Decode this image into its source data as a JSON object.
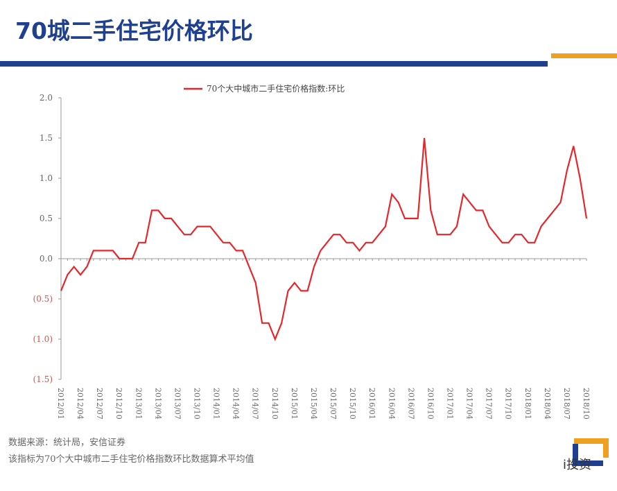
{
  "chart_data": {
    "type": "line",
    "title": "70城二手住宅价格环比",
    "categories": [
      "2012/01",
      null,
      null,
      "2012/04",
      null,
      null,
      "2012/07",
      null,
      null,
      "2012/10",
      null,
      null,
      "2013/01",
      null,
      null,
      "2013/04",
      null,
      null,
      "2013/07",
      null,
      null,
      "2013/10",
      null,
      null,
      "2014/01",
      null,
      null,
      "2014/04",
      null,
      null,
      "2014/07",
      null,
      null,
      "2014/10",
      null,
      null,
      "2015/01",
      null,
      null,
      "2015/04",
      null,
      null,
      "2015/07",
      null,
      null,
      "2015/10",
      null,
      null,
      "2016/01",
      null,
      null,
      "2016/04",
      null,
      null,
      "2016/07",
      null,
      null,
      "2016/10",
      null,
      null,
      "2017/01",
      null,
      null,
      "2017/04",
      null,
      null,
      "2017/07",
      null,
      null,
      "2017/10",
      null,
      null,
      "2018/01",
      null,
      null,
      "2018/04",
      null,
      null,
      "2018/07",
      null,
      null,
      "2018/10"
    ],
    "series": [
      {
        "name": "70个大中城市二手住宅价格指数:环比",
        "color": "#e8262a",
        "values": [
          -0.4,
          -0.2,
          -0.1,
          -0.2,
          -0.1,
          0.1,
          0.1,
          0.1,
          0.1,
          0.0,
          0.0,
          0.0,
          0.2,
          0.2,
          0.6,
          0.6,
          0.5,
          0.5,
          0.4,
          0.3,
          0.3,
          0.4,
          0.4,
          0.4,
          0.3,
          0.2,
          0.2,
          0.1,
          0.1,
          -0.1,
          -0.3,
          -0.8,
          -0.8,
          -1.0,
          -0.8,
          -0.4,
          -0.3,
          -0.4,
          -0.4,
          -0.1,
          0.1,
          0.2,
          0.3,
          0.3,
          0.2,
          0.2,
          0.1,
          0.2,
          0.2,
          0.3,
          0.4,
          0.8,
          0.7,
          0.5,
          0.5,
          0.5,
          1.5,
          0.6,
          0.3,
          0.3,
          0.3,
          0.4,
          0.8,
          0.7,
          0.6,
          0.6,
          0.4,
          0.3,
          0.2,
          0.2,
          0.3,
          0.3,
          0.2,
          0.2,
          0.4,
          0.5,
          0.6,
          0.7,
          1.1,
          1.4,
          1.0,
          0.5
        ]
      }
    ],
    "ylim": [
      -1.5,
      2.0
    ],
    "yticks": [
      {
        "value": 2.0,
        "label": "2.0"
      },
      {
        "value": 1.5,
        "label": "1.5"
      },
      {
        "value": 1.0,
        "label": "1.0"
      },
      {
        "value": 0.5,
        "label": "0.5"
      },
      {
        "value": 0.0,
        "label": "0.0"
      },
      {
        "value": -0.5,
        "label": "(0.5)"
      },
      {
        "value": -1.0,
        "label": "(1.0)"
      },
      {
        "value": -1.5,
        "label": "(1.5)"
      }
    ],
    "negative_label_color": "#d9534f",
    "legend": "top",
    "source": "数据来源：统计局，安信证券",
    "note": "该指标为70个大中城市二手住宅价格指数环比数据算术平均值",
    "watermark": "i投资"
  }
}
